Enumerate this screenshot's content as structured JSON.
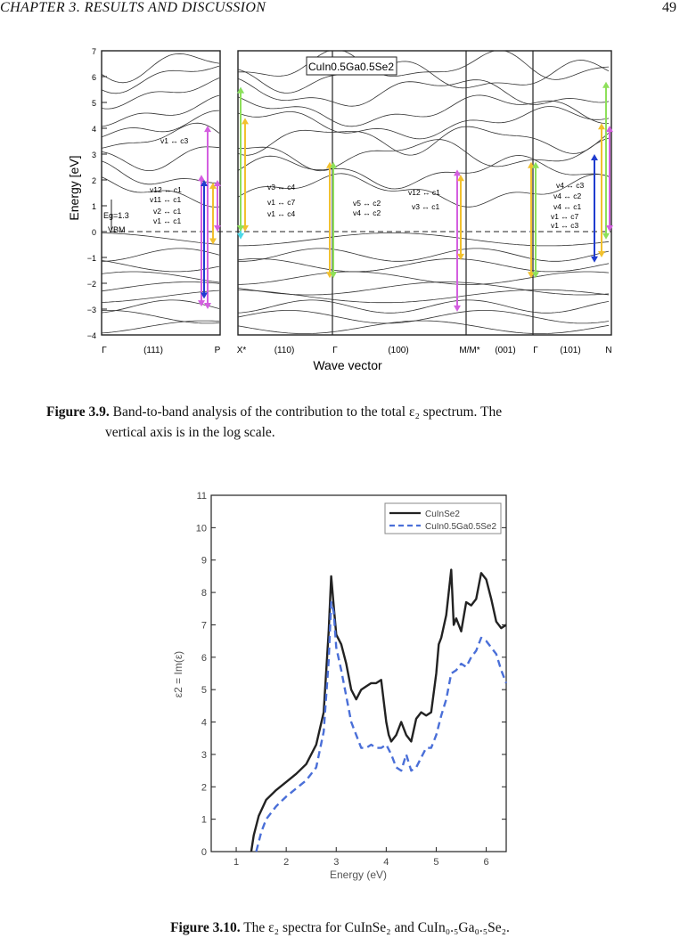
{
  "header": {
    "left": "CHAPTER 3.  RESULTS AND DISCUSSION",
    "page": "49"
  },
  "figure1": {
    "label": "Figure 3.9.",
    "caption_line1": "Band-to-band analysis of the contribution to the total ε₂ spectrum. The",
    "caption_line2": "vertical axis is in the log scale.",
    "compound": "CuIn0.5Ga0.5Se2",
    "ylabel": "Energy [eV]",
    "xlabel": "Wave vector",
    "yticks": [
      "7",
      "6",
      "5",
      "4",
      "3",
      "2",
      "1",
      "0",
      "−1",
      "−2",
      "−3",
      "−4"
    ],
    "kpoints": [
      "Γ",
      "(111)",
      "P",
      "X*",
      "(110)",
      "Γ",
      "(100)",
      "M/M*",
      "(001)",
      "Γ",
      "(101)",
      "N"
    ],
    "eg_label": "Eg=1.3",
    "vbm_label": "VBM",
    "transitions_a": [
      "v1 ↔ c3",
      "v12 ↔ c1",
      "v11 ↔ c1",
      "v2 ↔ c1",
      "v1 ↔ c1"
    ],
    "transitions_b": [
      "v3 ↔ c4",
      "v1 ↔ c7",
      "v1 ↔ c4"
    ],
    "transitions_c": [
      "v5 ↔ c2",
      "v4 ↔ c2"
    ],
    "transitions_d": [
      "v12 ↔ c1",
      "v3 ↔ c1"
    ],
    "transitions_e": [
      "v4 ↔ c3",
      "v4 ↔ c2",
      "v4 ↔ c1",
      "v1 ↔ c7",
      "v1 ↔ c3"
    ]
  },
  "figure2": {
    "label": "Figure 3.10.",
    "caption": "The ε₂ spectra for CuInSe₂ and CuIn₀.₅Ga₀.₅Se₂."
  },
  "chart_data": {
    "type": "line",
    "xlabel": "Energy (eV)",
    "ylabel": "ε2 = Im(ε)",
    "xlim": [
      0.5,
      6.4
    ],
    "ylim": [
      0,
      11
    ],
    "xticks": [
      1,
      2,
      3,
      4,
      5,
      6
    ],
    "yticks": [
      0,
      1,
      2,
      3,
      4,
      5,
      6,
      7,
      8,
      9,
      10,
      11
    ],
    "legend_position": "top-right",
    "series": [
      {
        "name": "CuInSe2",
        "color": "#222222",
        "style": "solid",
        "x": [
          1.3,
          1.35,
          1.45,
          1.6,
          1.8,
          2.0,
          2.2,
          2.4,
          2.6,
          2.75,
          2.85,
          2.9,
          2.95,
          3.0,
          3.1,
          3.2,
          3.3,
          3.4,
          3.5,
          3.6,
          3.7,
          3.8,
          3.9,
          4.0,
          4.05,
          4.1,
          4.2,
          4.3,
          4.4,
          4.5,
          4.6,
          4.7,
          4.8,
          4.9,
          5.0,
          5.05,
          5.1,
          5.2,
          5.3,
          5.35,
          5.4,
          5.5,
          5.6,
          5.7,
          5.8,
          5.9,
          6.0,
          6.1,
          6.2,
          6.3,
          6.4
        ],
        "y": [
          0,
          0.5,
          1.1,
          1.6,
          1.9,
          2.15,
          2.4,
          2.7,
          3.3,
          4.3,
          6.8,
          8.5,
          7.6,
          6.7,
          6.4,
          5.8,
          5.0,
          4.7,
          5.0,
          5.1,
          5.2,
          5.2,
          5.3,
          4.0,
          3.6,
          3.4,
          3.6,
          4.0,
          3.6,
          3.4,
          4.1,
          4.3,
          4.2,
          4.3,
          5.5,
          6.4,
          6.6,
          7.3,
          8.7,
          7.0,
          7.2,
          6.8,
          7.7,
          7.6,
          7.8,
          8.6,
          8.4,
          7.8,
          7.1,
          6.9,
          7.0
        ]
      },
      {
        "name": "CuIn0.5Ga0.5Se2",
        "color": "#4a6fd8",
        "style": "dashed",
        "x": [
          1.4,
          1.5,
          1.6,
          1.8,
          2.0,
          2.2,
          2.4,
          2.6,
          2.75,
          2.85,
          2.9,
          2.95,
          3.0,
          3.1,
          3.2,
          3.3,
          3.4,
          3.5,
          3.6,
          3.7,
          3.8,
          3.9,
          4.0,
          4.1,
          4.2,
          4.3,
          4.4,
          4.5,
          4.6,
          4.7,
          4.8,
          4.9,
          5.0,
          5.1,
          5.2,
          5.3,
          5.4,
          5.5,
          5.6,
          5.7,
          5.8,
          5.9,
          6.0,
          6.1,
          6.2,
          6.3,
          6.4
        ],
        "y": [
          0,
          0.6,
          1.0,
          1.4,
          1.7,
          1.95,
          2.2,
          2.6,
          3.7,
          5.9,
          7.7,
          7.4,
          6.3,
          5.6,
          4.8,
          4.0,
          3.6,
          3.2,
          3.2,
          3.3,
          3.2,
          3.2,
          3.3,
          3.0,
          2.6,
          2.5,
          3.0,
          2.5,
          2.6,
          2.9,
          3.2,
          3.2,
          3.6,
          4.2,
          4.7,
          5.5,
          5.6,
          5.8,
          5.7,
          6.0,
          6.2,
          6.6,
          6.5,
          6.3,
          6.1,
          5.6,
          5.2
        ]
      }
    ]
  }
}
